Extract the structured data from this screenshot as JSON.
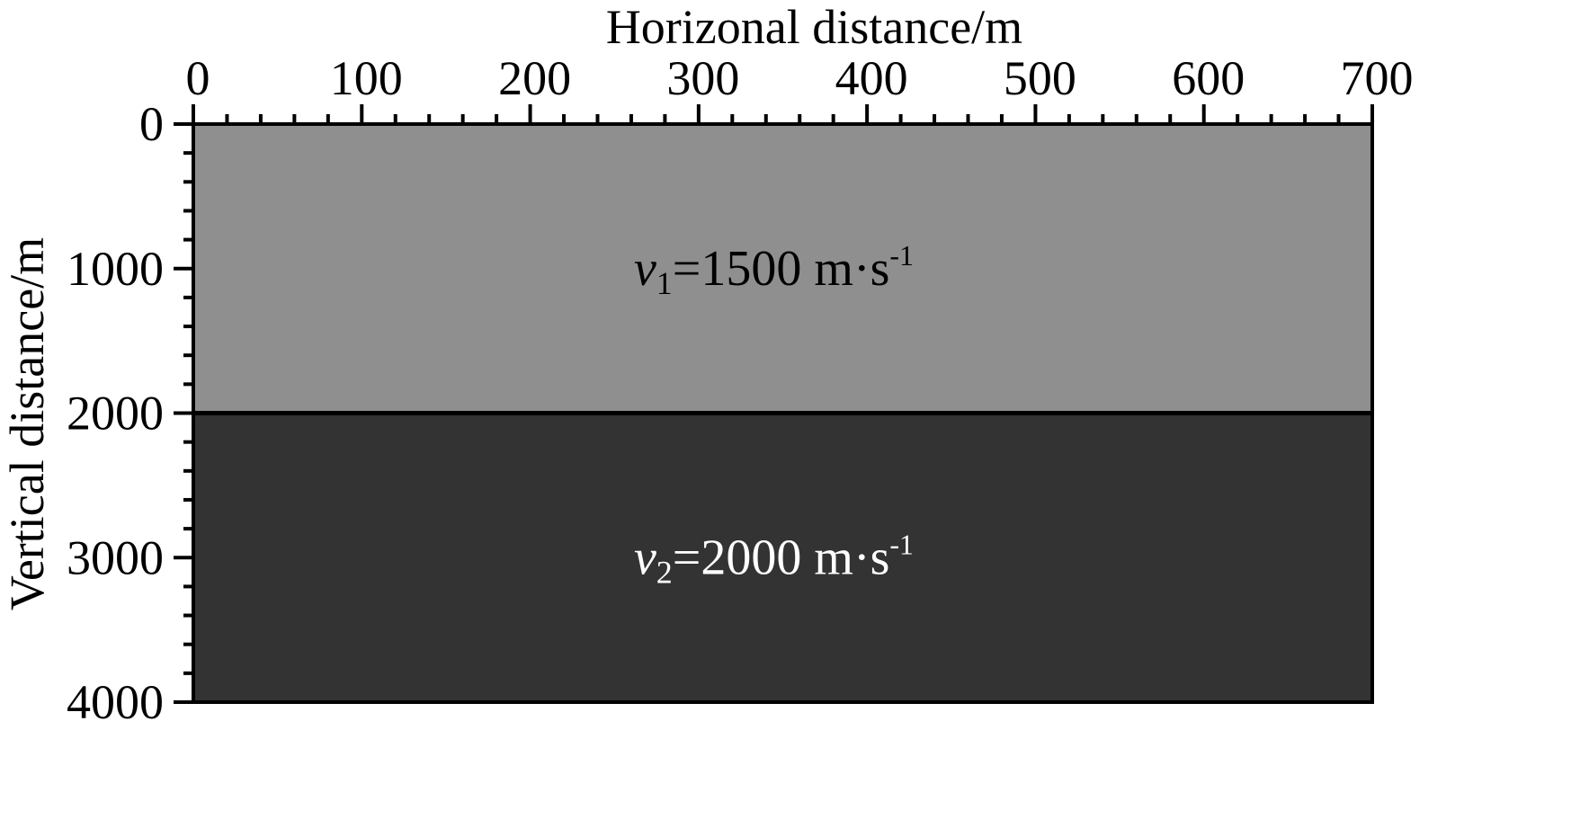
{
  "figure": {
    "x_axis": {
      "title": "Horizonal distance/m",
      "min": 0,
      "max": 700,
      "major_ticks": [
        0,
        100,
        200,
        300,
        400,
        500,
        600,
        700
      ],
      "tick_labels": [
        "0",
        "100",
        "200",
        "300",
        "400",
        "500",
        "600",
        "700"
      ],
      "minor_per_major": 5,
      "position": "top"
    },
    "y_axis": {
      "title": "Vertical distance/m",
      "min": 0,
      "max": 4000,
      "major_ticks": [
        0,
        1000,
        2000,
        3000,
        4000
      ],
      "tick_labels": [
        "0",
        "1000",
        "2000",
        "3000",
        "4000"
      ],
      "minor_per_major": 5,
      "inverted": true
    },
    "layers": [
      {
        "top": 0,
        "bottom": 2000,
        "color": "#8f8f8f",
        "label_var": "v",
        "label_sub": "1",
        "label_value": "=1500 m·s",
        "label_sup": "-1",
        "label_color": "#000000"
      },
      {
        "top": 2000,
        "bottom": 4000,
        "color": "#333333",
        "label_var": "v",
        "label_sub": "2",
        "label_value": "=2000 m·s",
        "label_sup": "-1",
        "label_color": "#ffffff"
      }
    ]
  }
}
